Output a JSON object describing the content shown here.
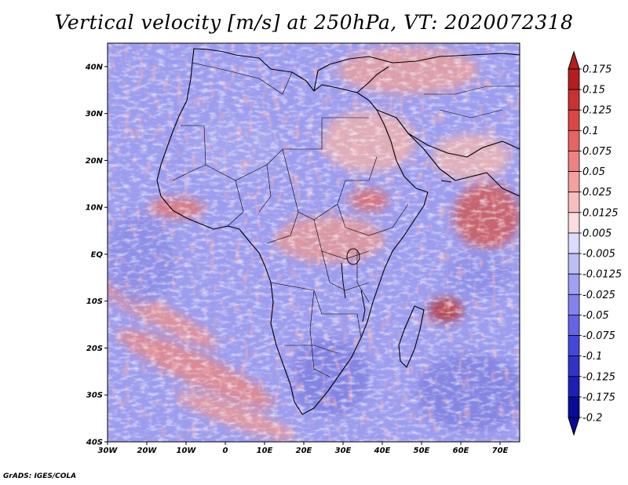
{
  "title": "Vertical velocity [m/s] at 250hPa, VT: 2020072318",
  "credit": "GrADS: IGES/COLA",
  "map": {
    "lon_range": [
      -30,
      75
    ],
    "lat_range": [
      -40,
      45
    ],
    "lat_ticks": [
      {
        "value": 40,
        "label": "40N"
      },
      {
        "value": 30,
        "label": "30N"
      },
      {
        "value": 20,
        "label": "20N"
      },
      {
        "value": 10,
        "label": "10N"
      },
      {
        "value": 0,
        "label": "EQ"
      },
      {
        "value": -10,
        "label": "10S"
      },
      {
        "value": -20,
        "label": "20S"
      },
      {
        "value": -30,
        "label": "30S"
      },
      {
        "value": -40,
        "label": "40S"
      }
    ],
    "lon_ticks": [
      {
        "value": -30,
        "label": "30W"
      },
      {
        "value": -20,
        "label": "20W"
      },
      {
        "value": -10,
        "label": "10W"
      },
      {
        "value": 0,
        "label": "0"
      },
      {
        "value": 10,
        "label": "10E"
      },
      {
        "value": 20,
        "label": "20E"
      },
      {
        "value": 30,
        "label": "30E"
      },
      {
        "value": 40,
        "label": "40E"
      },
      {
        "value": 50,
        "label": "50E"
      },
      {
        "value": 60,
        "label": "60E"
      },
      {
        "value": 70,
        "label": "70E"
      }
    ]
  },
  "colorbar": {
    "labels": [
      "0.175",
      "0.15",
      "0.125",
      "0.1",
      "0.075",
      "0.05",
      "0.025",
      "0.0125",
      "0.005",
      "-0.005",
      "-0.0125",
      "-0.025",
      "-0.05",
      "-0.075",
      "-0.1",
      "-0.125",
      "-0.175",
      "-0.2"
    ],
    "colors": [
      "#b41e1e",
      "#c83232",
      "#dc4646",
      "#e66464",
      "#ee8282",
      "#f4a0a0",
      "#f8bebe",
      "#fcdcdc",
      "#ffffff",
      "#dcdcfc",
      "#bebef8",
      "#a0a0f4",
      "#8282ee",
      "#6464e6",
      "#4646dc",
      "#3232c8",
      "#1e1eb4",
      "#0a0a96"
    ]
  }
}
